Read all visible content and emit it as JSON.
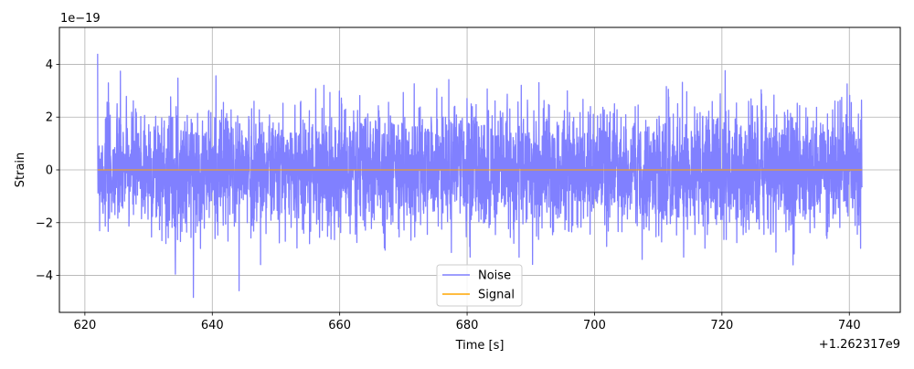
{
  "chart_data": {
    "type": "line",
    "xlabel": "Time [s]",
    "ylabel": "Strain",
    "x_offset_label": "+1.262317e9",
    "y_scale_label": "1e−19",
    "xlim": [
      616,
      748
    ],
    "ylim": [
      -5.4e-19,
      5.4e-19
    ],
    "xticks": [
      620,
      640,
      660,
      680,
      700,
      720,
      740
    ],
    "xtick_labels": [
      "620",
      "640",
      "660",
      "680",
      "700",
      "720",
      "740"
    ],
    "yticks": [
      -4e-19,
      -2e-19,
      0,
      2e-19,
      4e-19
    ],
    "ytick_labels": [
      "−4",
      "−2",
      "0",
      "2",
      "4"
    ],
    "grid": true,
    "legend": {
      "placement": "lower center"
    },
    "series": [
      {
        "name": "Noise",
        "color": "#8080ff",
        "style": "dense random noise band",
        "x_range": [
          622,
          742
        ],
        "envelope_peak": [
          -4.9e-19,
          4.9e-19
        ],
        "envelope_typical": [
          -2.6e-19,
          2.6e-19
        ]
      },
      {
        "name": "Signal",
        "color": "#ffa500",
        "style": "flat line",
        "x_range": [
          622,
          742
        ],
        "values": [
          0,
          0
        ]
      }
    ]
  }
}
